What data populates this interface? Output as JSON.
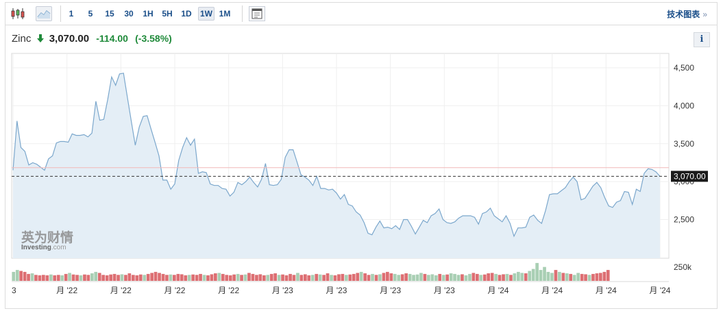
{
  "toolbar": {
    "chart_type_icons": [
      "candlestick-icon",
      "area-chart-icon"
    ],
    "intervals": [
      "1",
      "5",
      "15",
      "30",
      "1H",
      "5H",
      "1D",
      "1W",
      "1M"
    ],
    "active_interval": "1W",
    "calendar_icon": "calendar-icon",
    "tech_chart_label": "技术图表",
    "tech_chart_arrow": "»"
  },
  "quote": {
    "name": "Zinc",
    "direction_icon": "arrow-down-icon",
    "price": "3,070.00",
    "change": "-114.00",
    "change_pct": "(-3.58%)",
    "info_label": "i"
  },
  "watermark": {
    "cn": "英为财情",
    "en_main": "Investing",
    "en_suffix": ".com"
  },
  "colors": {
    "line": "#7ba7cc",
    "area": "#e4eef6",
    "last_price_line": "#333333",
    "reference_line": "#f2b8b8",
    "vol_up": "#a9cfb4",
    "vol_down": "#dd6f73",
    "change_text": "#1f8a3a",
    "arrow": "#1f8a3a",
    "price_label_bg": "#1a1a1a"
  },
  "chart_data": {
    "type": "area",
    "title": "",
    "xlabel": "",
    "ylabel": "",
    "ylim": [
      1990,
      4690
    ],
    "y_ticks": [
      2500,
      3000,
      3500,
      4000,
      4500
    ],
    "y_tick_labels": [
      "2,500",
      "3,000",
      "3,500",
      "4,000",
      "4,500"
    ],
    "last_price": 3070,
    "last_price_label": "3,070.00",
    "reference_price": 3184,
    "volume_label": "250k",
    "x_tick_labels": [
      "3",
      "月 '22",
      "月 '22",
      "月 '22",
      "月 '22",
      "月 '23",
      "月 '23",
      "月 '23",
      "月 '23",
      "月 '24",
      "月 '24",
      "月 '24",
      "月 '24"
    ],
    "grid": true,
    "series": [
      {
        "values": [
          3150,
          3800,
          3450,
          3400,
          3220,
          3250,
          3230,
          3190,
          3150,
          3300,
          3340,
          3510,
          3530,
          3530,
          3520,
          3630,
          3610,
          3610,
          3620,
          3590,
          3640,
          4060,
          3810,
          3820,
          4080,
          4380,
          4270,
          4420,
          4430,
          4110,
          3790,
          3480,
          3720,
          3860,
          3870,
          3690,
          3520,
          3340,
          3020,
          3020,
          2900,
          2970,
          3280,
          3450,
          3580,
          3480,
          3560,
          3110,
          3130,
          3120,
          2970,
          2950,
          2950,
          2910,
          2900,
          2810,
          2860,
          2990,
          2960,
          3000,
          3060,
          2990,
          2930,
          3030,
          3240,
          2960,
          2950,
          2960,
          3030,
          3320,
          3420,
          3420,
          3260,
          3090,
          3060,
          3020,
          2950,
          3070,
          2910,
          2910,
          2890,
          2900,
          2850,
          2770,
          2830,
          2700,
          2680,
          2600,
          2560,
          2460,
          2320,
          2300,
          2400,
          2480,
          2390,
          2400,
          2380,
          2420,
          2370,
          2500,
          2500,
          2410,
          2310,
          2400,
          2490,
          2460,
          2550,
          2580,
          2640,
          2500,
          2460,
          2450,
          2470,
          2520,
          2550,
          2550,
          2550,
          2530,
          2440,
          2580,
          2600,
          2650,
          2550,
          2510,
          2470,
          2550,
          2450,
          2280,
          2390,
          2390,
          2400,
          2530,
          2560,
          2490,
          2450,
          2620,
          2830,
          2840,
          2840,
          2880,
          2920,
          3000,
          3060,
          3000,
          2760,
          2780,
          2860,
          2940,
          2990,
          2920,
          2790,
          2680,
          2660,
          2730,
          2750,
          2870,
          2860,
          2700,
          2900,
          2870,
          3110,
          3170,
          3160,
          3130,
          3070
        ]
      }
    ],
    "volume": [
      {
        "v": 0.45,
        "d": 0
      },
      {
        "v": 0.55,
        "d": 0
      },
      {
        "v": 0.5,
        "d": 1
      },
      {
        "v": 0.45,
        "d": 1
      },
      {
        "v": 0.35,
        "d": 1
      },
      {
        "v": 0.38,
        "d": 0
      },
      {
        "v": 0.3,
        "d": 1
      },
      {
        "v": 0.28,
        "d": 1
      },
      {
        "v": 0.3,
        "d": 1
      },
      {
        "v": 0.28,
        "d": 1
      },
      {
        "v": 0.32,
        "d": 0
      },
      {
        "v": 0.28,
        "d": 1
      },
      {
        "v": 0.3,
        "d": 1
      },
      {
        "v": 0.28,
        "d": 0
      },
      {
        "v": 0.35,
        "d": 1
      },
      {
        "v": 0.4,
        "d": 0
      },
      {
        "v": 0.32,
        "d": 1
      },
      {
        "v": 0.3,
        "d": 1
      },
      {
        "v": 0.28,
        "d": 0
      },
      {
        "v": 0.32,
        "d": 1
      },
      {
        "v": 0.3,
        "d": 1
      },
      {
        "v": 0.38,
        "d": 0
      },
      {
        "v": 0.45,
        "d": 0
      },
      {
        "v": 0.4,
        "d": 1
      },
      {
        "v": 0.3,
        "d": 1
      },
      {
        "v": 0.28,
        "d": 1
      },
      {
        "v": 0.32,
        "d": 1
      },
      {
        "v": 0.35,
        "d": 1
      },
      {
        "v": 0.3,
        "d": 1
      },
      {
        "v": 0.33,
        "d": 0
      },
      {
        "v": 0.3,
        "d": 1
      },
      {
        "v": 0.38,
        "d": 1
      },
      {
        "v": 0.3,
        "d": 1
      },
      {
        "v": 0.28,
        "d": 1
      },
      {
        "v": 0.32,
        "d": 1
      },
      {
        "v": 0.3,
        "d": 0
      },
      {
        "v": 0.35,
        "d": 1
      },
      {
        "v": 0.4,
        "d": 1
      },
      {
        "v": 0.45,
        "d": 1
      },
      {
        "v": 0.4,
        "d": 1
      },
      {
        "v": 0.35,
        "d": 1
      },
      {
        "v": 0.3,
        "d": 1
      },
      {
        "v": 0.32,
        "d": 0
      },
      {
        "v": 0.3,
        "d": 1
      },
      {
        "v": 0.35,
        "d": 1
      },
      {
        "v": 0.33,
        "d": 1
      },
      {
        "v": 0.28,
        "d": 1
      },
      {
        "v": 0.3,
        "d": 0
      },
      {
        "v": 0.32,
        "d": 1
      },
      {
        "v": 0.3,
        "d": 1
      },
      {
        "v": 0.35,
        "d": 1
      },
      {
        "v": 0.3,
        "d": 0
      },
      {
        "v": 0.28,
        "d": 1
      },
      {
        "v": 0.33,
        "d": 1
      },
      {
        "v": 0.38,
        "d": 1
      },
      {
        "v": 0.4,
        "d": 0
      },
      {
        "v": 0.35,
        "d": 1
      },
      {
        "v": 0.3,
        "d": 1
      },
      {
        "v": 0.28,
        "d": 1
      },
      {
        "v": 0.32,
        "d": 1
      },
      {
        "v": 0.35,
        "d": 0
      },
      {
        "v": 0.3,
        "d": 1
      },
      {
        "v": 0.32,
        "d": 0
      },
      {
        "v": 0.4,
        "d": 1
      },
      {
        "v": 0.35,
        "d": 1
      },
      {
        "v": 0.3,
        "d": 1
      },
      {
        "v": 0.33,
        "d": 1
      },
      {
        "v": 0.28,
        "d": 1
      },
      {
        "v": 0.3,
        "d": 0
      },
      {
        "v": 0.35,
        "d": 1
      },
      {
        "v": 0.38,
        "d": 1
      },
      {
        "v": 0.3,
        "d": 0
      },
      {
        "v": 0.32,
        "d": 1
      },
      {
        "v": 0.28,
        "d": 1
      },
      {
        "v": 0.35,
        "d": 1
      },
      {
        "v": 0.3,
        "d": 1
      },
      {
        "v": 0.4,
        "d": 0
      },
      {
        "v": 0.3,
        "d": 1
      },
      {
        "v": 0.33,
        "d": 1
      },
      {
        "v": 0.28,
        "d": 1
      },
      {
        "v": 0.3,
        "d": 0
      },
      {
        "v": 0.35,
        "d": 1
      },
      {
        "v": 0.32,
        "d": 0
      },
      {
        "v": 0.3,
        "d": 1
      },
      {
        "v": 0.38,
        "d": 1
      },
      {
        "v": 0.3,
        "d": 0
      },
      {
        "v": 0.28,
        "d": 1
      },
      {
        "v": 0.33,
        "d": 1
      },
      {
        "v": 0.35,
        "d": 1
      },
      {
        "v": 0.3,
        "d": 0
      },
      {
        "v": 0.32,
        "d": 1
      },
      {
        "v": 0.35,
        "d": 1
      },
      {
        "v": 0.4,
        "d": 1
      },
      {
        "v": 0.45,
        "d": 0
      },
      {
        "v": 0.38,
        "d": 1
      },
      {
        "v": 0.3,
        "d": 1
      },
      {
        "v": 0.35,
        "d": 0
      },
      {
        "v": 0.3,
        "d": 1
      },
      {
        "v": 0.33,
        "d": 0
      },
      {
        "v": 0.4,
        "d": 1
      },
      {
        "v": 0.45,
        "d": 1
      },
      {
        "v": 0.38,
        "d": 1
      },
      {
        "v": 0.35,
        "d": 0
      },
      {
        "v": 0.3,
        "d": 0
      },
      {
        "v": 0.33,
        "d": 1
      },
      {
        "v": 0.38,
        "d": 1
      },
      {
        "v": 0.35,
        "d": 0
      },
      {
        "v": 0.3,
        "d": 0
      },
      {
        "v": 0.32,
        "d": 0
      },
      {
        "v": 0.4,
        "d": 0
      },
      {
        "v": 0.35,
        "d": 1
      },
      {
        "v": 0.3,
        "d": 0
      },
      {
        "v": 0.33,
        "d": 0
      },
      {
        "v": 0.28,
        "d": 0
      },
      {
        "v": 0.35,
        "d": 1
      },
      {
        "v": 0.3,
        "d": 0
      },
      {
        "v": 0.32,
        "d": 1
      },
      {
        "v": 0.38,
        "d": 0
      },
      {
        "v": 0.35,
        "d": 0
      },
      {
        "v": 0.3,
        "d": 0
      },
      {
        "v": 0.33,
        "d": 1
      },
      {
        "v": 0.28,
        "d": 0
      },
      {
        "v": 0.35,
        "d": 0
      },
      {
        "v": 0.4,
        "d": 1
      },
      {
        "v": 0.35,
        "d": 1
      },
      {
        "v": 0.3,
        "d": 0
      },
      {
        "v": 0.32,
        "d": 1
      },
      {
        "v": 0.38,
        "d": 1
      },
      {
        "v": 0.4,
        "d": 1
      },
      {
        "v": 0.35,
        "d": 0
      },
      {
        "v": 0.3,
        "d": 1
      },
      {
        "v": 0.33,
        "d": 1
      },
      {
        "v": 0.35,
        "d": 0
      },
      {
        "v": 0.3,
        "d": 1
      },
      {
        "v": 0.38,
        "d": 0
      },
      {
        "v": 0.45,
        "d": 0
      },
      {
        "v": 0.4,
        "d": 0
      },
      {
        "v": 0.38,
        "d": 1
      },
      {
        "v": 0.5,
        "d": 0
      },
      {
        "v": 0.6,
        "d": 0
      },
      {
        "v": 0.9,
        "d": 0
      },
      {
        "v": 0.55,
        "d": 0
      },
      {
        "v": 0.7,
        "d": 0
      },
      {
        "v": 0.45,
        "d": 0
      },
      {
        "v": 0.4,
        "d": 0
      },
      {
        "v": 0.55,
        "d": 1
      },
      {
        "v": 0.45,
        "d": 0
      },
      {
        "v": 0.4,
        "d": 1
      },
      {
        "v": 0.38,
        "d": 0
      },
      {
        "v": 0.35,
        "d": 1
      },
      {
        "v": 0.3,
        "d": 0
      },
      {
        "v": 0.4,
        "d": 0
      },
      {
        "v": 0.35,
        "d": 1
      },
      {
        "v": 0.33,
        "d": 1
      },
      {
        "v": 0.3,
        "d": 0
      },
      {
        "v": 0.35,
        "d": 1
      },
      {
        "v": 0.38,
        "d": 1
      },
      {
        "v": 0.4,
        "d": 1
      },
      {
        "v": 0.45,
        "d": 1
      },
      {
        "v": 0.55,
        "d": 1
      }
    ]
  }
}
